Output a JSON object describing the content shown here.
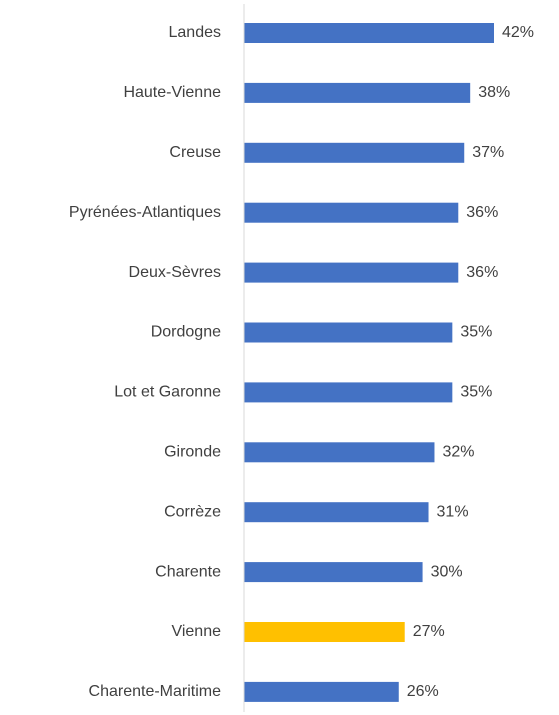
{
  "chart_data": {
    "type": "bar",
    "orientation": "horizontal",
    "categories": [
      "Landes",
      "Haute-Vienne",
      "Creuse",
      "Pyrénées-Atlantiques",
      "Deux-Sèvres",
      "Dordogne",
      "Lot et Garonne",
      "Gironde",
      "Corrèze",
      "Charente",
      "Vienne",
      "Charente-Maritime"
    ],
    "values": [
      42,
      38,
      37,
      36,
      36,
      35,
      35,
      32,
      31,
      30,
      27,
      26
    ],
    "value_labels": [
      "42%",
      "38%",
      "37%",
      "36%",
      "36%",
      "35%",
      "35%",
      "32%",
      "31%",
      "30%",
      "27%",
      "26%"
    ],
    "colors": [
      "#4472c4",
      "#4472c4",
      "#4472c4",
      "#4472c4",
      "#4472c4",
      "#4472c4",
      "#4472c4",
      "#4472c4",
      "#4472c4",
      "#4472c4",
      "#ffc000",
      "#4472c4"
    ]
  }
}
